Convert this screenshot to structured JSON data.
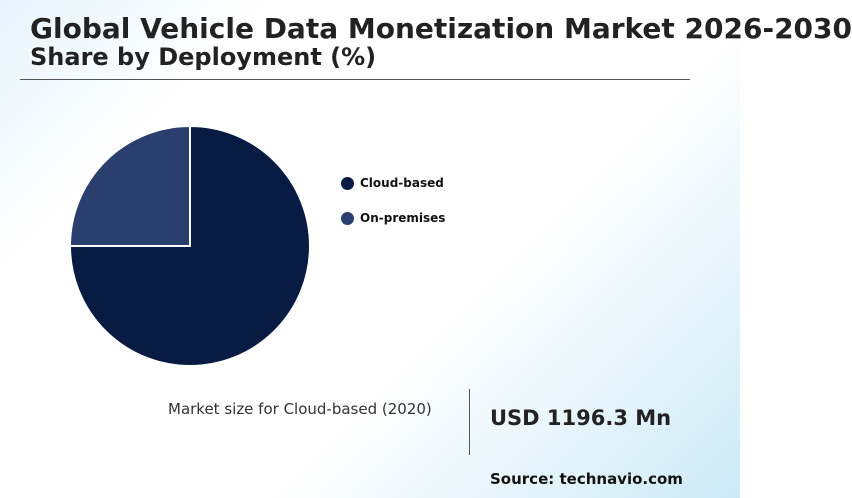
{
  "header": {
    "title": "Global Vehicle Data Monetization Market 2026-2030",
    "subtitle": "Share by Deployment (%)"
  },
  "chart_data": {
    "type": "pie",
    "categories": [
      "Cloud-based",
      "On-premises"
    ],
    "values": [
      75,
      25
    ],
    "colors": [
      "#081c43",
      "#2b3f6e"
    ],
    "start_angle_deg": 0,
    "direction": "clockwise",
    "legend_position": "right"
  },
  "stat": {
    "label": "Market size for Cloud-based (2020)",
    "value": "USD 1196.3 Mn"
  },
  "footer": {
    "source": "Source: technavio.com"
  }
}
